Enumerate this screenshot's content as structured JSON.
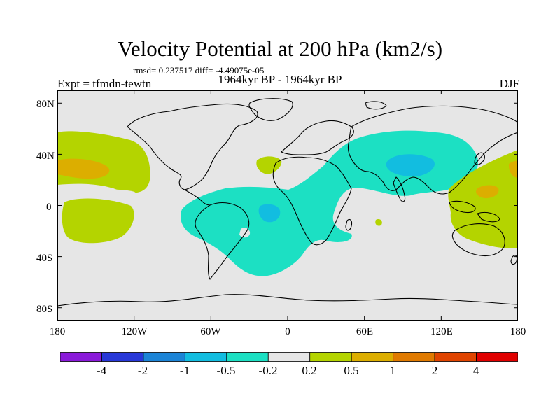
{
  "title": "Velocity Potential at 200 hPa (km2/s)",
  "stats": "rmsd= 0.237517 diff= -4.49075e-05",
  "left_label": "Expt = tfmdn-tewtn",
  "center_label": "1964kyr BP - 1964kyr BP",
  "right_label": "DJF",
  "colors": {
    "background": "#e6e6e6",
    "coast": "#000000"
  },
  "chart_data": {
    "type": "heatmap",
    "title": "Velocity Potential at 200 hPa (km2/s)",
    "xlim": [
      -180,
      180
    ],
    "ylim": [
      -90,
      90
    ],
    "x_ticks": [
      "180",
      "120W",
      "60W",
      "0",
      "60E",
      "120E",
      "180"
    ],
    "y_ticks": [
      "80N",
      "40N",
      "0",
      "40S",
      "80S"
    ],
    "levels": [
      "-4",
      "-2",
      "-1",
      "-0.5",
      "-0.2",
      "0.2",
      "0.5",
      "1",
      "2",
      "4"
    ],
    "level_colors": [
      "#8a1ad9",
      "#2838d8",
      "#1c84d6",
      "#12bde0",
      "#1ce0c3",
      "#e6e6e6",
      "#b4d400",
      "#dcae00",
      "#e07a00",
      "#e04400",
      "#e00000"
    ]
  }
}
